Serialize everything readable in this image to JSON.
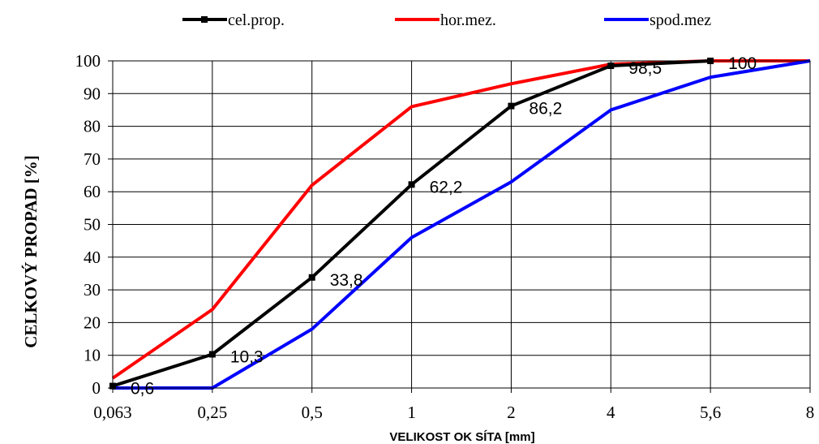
{
  "chart_data": {
    "type": "line",
    "x_categories": [
      "0,063",
      "0,25",
      "0,5",
      "1",
      "2",
      "4",
      "5,6",
      "8"
    ],
    "xlabel": "VELIKOST OK SÍTA [mm]",
    "ylabel": "CELKOVÝ PROPAD [%]",
    "ylim": [
      0,
      100
    ],
    "yticks": [
      0,
      10,
      20,
      30,
      40,
      50,
      60,
      70,
      80,
      90,
      100
    ],
    "grid": true,
    "legend_position": "top",
    "series": [
      {
        "name": "cel.prop.",
        "color": "#000000",
        "marker": "square",
        "values": [
          0.6,
          10.3,
          33.8,
          62.2,
          86.2,
          98.5,
          100,
          null
        ],
        "labels": [
          "0,6",
          "10,3",
          "33,8",
          "62,2",
          "86,2",
          "98,5",
          "100",
          ""
        ]
      },
      {
        "name": "hor.mez.",
        "color": "#ff0000",
        "marker": "none",
        "values": [
          3,
          24,
          62,
          86,
          93,
          99,
          100,
          100
        ]
      },
      {
        "name": "spod.mez",
        "color": "#0000ff",
        "marker": "none",
        "values": [
          0,
          0,
          18,
          46,
          63,
          85,
          95,
          100
        ]
      }
    ]
  }
}
